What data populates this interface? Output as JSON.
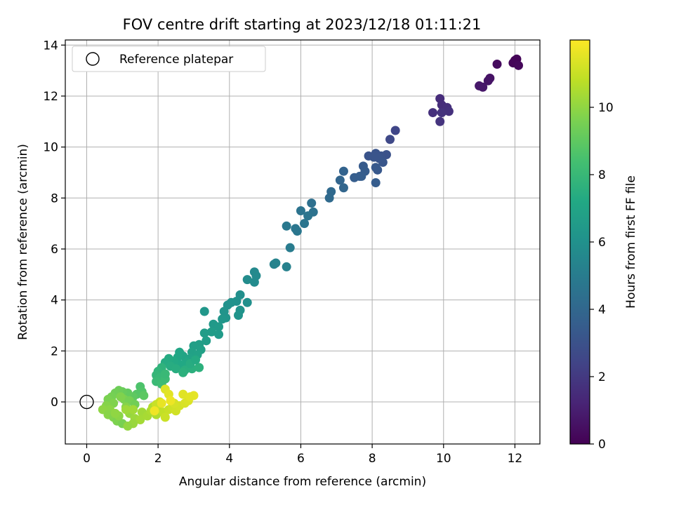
{
  "chart_data": {
    "type": "scatter",
    "title": "FOV centre drift starting at 2023/12/18 01:11:21",
    "xlabel": "Angular distance from reference (arcmin)",
    "ylabel": "Rotation from reference (arcmin)",
    "xlim": [
      -0.6,
      12.7
    ],
    "ylim": [
      -1.65,
      14.2
    ],
    "xticks": [
      0,
      2,
      4,
      6,
      8,
      10,
      12
    ],
    "yticks": [
      0,
      2,
      4,
      6,
      8,
      10,
      12,
      14
    ],
    "grid": true,
    "legend": {
      "position": "top-left",
      "entries": [
        "Reference platepar"
      ]
    },
    "reference_point": {
      "x": 0,
      "y": 0,
      "label": "Reference platepar"
    },
    "colorbar": {
      "label": "Hours from first FF file",
      "range": [
        0,
        12
      ],
      "ticks": [
        0,
        2,
        4,
        6,
        8,
        10
      ],
      "colormap": "viridis"
    },
    "points": [
      {
        "x": 12.0,
        "y": 13.4,
        "t": 0.05
      },
      {
        "x": 12.05,
        "y": 13.45,
        "t": 0.1
      },
      {
        "x": 11.95,
        "y": 13.3,
        "t": 0.15
      },
      {
        "x": 12.1,
        "y": 13.2,
        "t": 0.2
      },
      {
        "x": 11.5,
        "y": 13.25,
        "t": 0.35
      },
      {
        "x": 11.3,
        "y": 12.7,
        "t": 0.6
      },
      {
        "x": 11.25,
        "y": 12.6,
        "t": 0.65
      },
      {
        "x": 11.1,
        "y": 12.35,
        "t": 0.75
      },
      {
        "x": 11.0,
        "y": 12.4,
        "t": 0.8
      },
      {
        "x": 9.9,
        "y": 11.9,
        "t": 1.5
      },
      {
        "x": 9.95,
        "y": 11.65,
        "t": 1.55
      },
      {
        "x": 10.1,
        "y": 11.55,
        "t": 1.6
      },
      {
        "x": 9.7,
        "y": 11.35,
        "t": 1.65
      },
      {
        "x": 10.15,
        "y": 11.4,
        "t": 1.7
      },
      {
        "x": 9.9,
        "y": 11.0,
        "t": 1.8
      },
      {
        "x": 9.95,
        "y": 11.35,
        "t": 1.75
      },
      {
        "x": 8.65,
        "y": 10.65,
        "t": 2.5
      },
      {
        "x": 8.5,
        "y": 10.3,
        "t": 2.6
      },
      {
        "x": 8.4,
        "y": 9.7,
        "t": 3.0
      },
      {
        "x": 8.25,
        "y": 9.65,
        "t": 3.05
      },
      {
        "x": 8.1,
        "y": 9.75,
        "t": 3.1
      },
      {
        "x": 8.2,
        "y": 9.55,
        "t": 3.15
      },
      {
        "x": 8.3,
        "y": 9.4,
        "t": 3.2
      },
      {
        "x": 7.9,
        "y": 9.65,
        "t": 3.1
      },
      {
        "x": 8.05,
        "y": 9.6,
        "t": 3.15
      },
      {
        "x": 8.15,
        "y": 9.1,
        "t": 3.3
      },
      {
        "x": 8.1,
        "y": 9.2,
        "t": 3.35
      },
      {
        "x": 8.1,
        "y": 8.6,
        "t": 3.5
      },
      {
        "x": 7.75,
        "y": 9.25,
        "t": 3.4
      },
      {
        "x": 7.8,
        "y": 9.05,
        "t": 3.45
      },
      {
        "x": 7.65,
        "y": 8.85,
        "t": 3.5
      },
      {
        "x": 7.5,
        "y": 8.8,
        "t": 3.55
      },
      {
        "x": 7.7,
        "y": 8.85,
        "t": 3.55
      },
      {
        "x": 7.2,
        "y": 9.05,
        "t": 3.8
      },
      {
        "x": 7.1,
        "y": 8.7,
        "t": 3.9
      },
      {
        "x": 7.2,
        "y": 8.4,
        "t": 3.95
      },
      {
        "x": 6.85,
        "y": 8.25,
        "t": 4.1
      },
      {
        "x": 6.8,
        "y": 8.0,
        "t": 4.15
      },
      {
        "x": 6.3,
        "y": 7.8,
        "t": 4.4
      },
      {
        "x": 6.35,
        "y": 7.45,
        "t": 4.5
      },
      {
        "x": 6.0,
        "y": 7.5,
        "t": 4.55
      },
      {
        "x": 6.2,
        "y": 7.3,
        "t": 4.6
      },
      {
        "x": 6.1,
        "y": 7.0,
        "t": 4.65
      },
      {
        "x": 5.9,
        "y": 6.7,
        "t": 4.75
      },
      {
        "x": 5.85,
        "y": 6.8,
        "t": 4.7
      },
      {
        "x": 5.6,
        "y": 6.9,
        "t": 4.8
      },
      {
        "x": 5.7,
        "y": 6.05,
        "t": 5.0
      },
      {
        "x": 5.25,
        "y": 5.4,
        "t": 5.3
      },
      {
        "x": 5.3,
        "y": 5.45,
        "t": 5.35
      },
      {
        "x": 5.6,
        "y": 5.3,
        "t": 5.25
      },
      {
        "x": 4.7,
        "y": 5.1,
        "t": 5.6
      },
      {
        "x": 4.75,
        "y": 4.95,
        "t": 5.65
      },
      {
        "x": 4.7,
        "y": 4.7,
        "t": 5.7
      },
      {
        "x": 4.5,
        "y": 4.8,
        "t": 5.75
      },
      {
        "x": 4.3,
        "y": 4.2,
        "t": 5.9
      },
      {
        "x": 4.5,
        "y": 3.9,
        "t": 5.95
      },
      {
        "x": 4.2,
        "y": 3.95,
        "t": 6.0
      },
      {
        "x": 4.05,
        "y": 3.9,
        "t": 6.05
      },
      {
        "x": 3.95,
        "y": 3.8,
        "t": 6.05
      },
      {
        "x": 4.3,
        "y": 3.6,
        "t": 6.1
      },
      {
        "x": 4.25,
        "y": 3.4,
        "t": 6.15
      },
      {
        "x": 3.9,
        "y": 3.3,
        "t": 6.2
      },
      {
        "x": 3.85,
        "y": 3.55,
        "t": 6.15
      },
      {
        "x": 3.8,
        "y": 3.25,
        "t": 6.25
      },
      {
        "x": 3.3,
        "y": 3.55,
        "t": 6.3
      },
      {
        "x": 3.55,
        "y": 3.05,
        "t": 6.4
      },
      {
        "x": 3.7,
        "y": 2.95,
        "t": 6.45
      },
      {
        "x": 3.7,
        "y": 2.65,
        "t": 6.5
      },
      {
        "x": 3.5,
        "y": 2.75,
        "t": 6.55
      },
      {
        "x": 3.3,
        "y": 2.7,
        "t": 6.6
      },
      {
        "x": 3.35,
        "y": 2.4,
        "t": 6.65
      },
      {
        "x": 3.15,
        "y": 2.25,
        "t": 6.7
      },
      {
        "x": 3.0,
        "y": 2.2,
        "t": 6.75
      },
      {
        "x": 3.2,
        "y": 2.05,
        "t": 6.8
      },
      {
        "x": 2.95,
        "y": 1.95,
        "t": 6.85
      },
      {
        "x": 3.1,
        "y": 1.85,
        "t": 6.9
      },
      {
        "x": 2.9,
        "y": 1.7,
        "t": 6.95
      },
      {
        "x": 2.7,
        "y": 1.8,
        "t": 7.0
      },
      {
        "x": 2.6,
        "y": 1.95,
        "t": 7.05
      },
      {
        "x": 2.55,
        "y": 1.75,
        "t": 7.1
      },
      {
        "x": 2.8,
        "y": 1.55,
        "t": 7.15
      },
      {
        "x": 2.65,
        "y": 1.45,
        "t": 7.2
      },
      {
        "x": 2.45,
        "y": 1.6,
        "t": 7.25
      },
      {
        "x": 2.3,
        "y": 1.7,
        "t": 7.3
      },
      {
        "x": 2.2,
        "y": 1.55,
        "t": 7.35
      },
      {
        "x": 2.35,
        "y": 1.4,
        "t": 7.4
      },
      {
        "x": 2.5,
        "y": 1.3,
        "t": 7.45
      },
      {
        "x": 2.75,
        "y": 1.25,
        "t": 7.5
      },
      {
        "x": 2.95,
        "y": 1.3,
        "t": 7.55
      },
      {
        "x": 3.15,
        "y": 1.35,
        "t": 7.6
      },
      {
        "x": 2.7,
        "y": 1.15,
        "t": 7.6
      },
      {
        "x": 2.9,
        "y": 1.5,
        "t": 7.4
      },
      {
        "x": 3.05,
        "y": 1.65,
        "t": 7.3
      },
      {
        "x": 2.1,
        "y": 1.35,
        "t": 7.7
      },
      {
        "x": 2.0,
        "y": 1.2,
        "t": 7.8
      },
      {
        "x": 1.95,
        "y": 1.05,
        "t": 7.9
      },
      {
        "x": 2.05,
        "y": 0.95,
        "t": 8.0
      },
      {
        "x": 1.95,
        "y": 0.8,
        "t": 8.1
      },
      {
        "x": 2.1,
        "y": 0.7,
        "t": 8.2
      },
      {
        "x": 2.2,
        "y": 0.9,
        "t": 8.15
      },
      {
        "x": 2.2,
        "y": 1.1,
        "t": 8.05
      },
      {
        "x": 1.5,
        "y": 0.6,
        "t": 8.6
      },
      {
        "x": 1.55,
        "y": 0.4,
        "t": 8.7
      },
      {
        "x": 1.4,
        "y": 0.3,
        "t": 8.8
      },
      {
        "x": 1.6,
        "y": 0.25,
        "t": 8.9
      },
      {
        "x": 1.3,
        "y": 0.2,
        "t": 9.0
      },
      {
        "x": 1.15,
        "y": 0.35,
        "t": 9.1
      },
      {
        "x": 1.0,
        "y": 0.4,
        "t": 9.2
      },
      {
        "x": 0.9,
        "y": 0.45,
        "t": 9.3
      },
      {
        "x": 0.8,
        "y": 0.35,
        "t": 9.4
      },
      {
        "x": 0.7,
        "y": 0.2,
        "t": 9.5
      },
      {
        "x": 0.6,
        "y": 0.1,
        "t": 9.6
      },
      {
        "x": 0.75,
        "y": -0.05,
        "t": 9.7
      },
      {
        "x": 0.55,
        "y": -0.15,
        "t": 9.8
      },
      {
        "x": 0.65,
        "y": -0.3,
        "t": 9.9
      },
      {
        "x": 0.45,
        "y": -0.3,
        "t": 9.95
      },
      {
        "x": 0.6,
        "y": -0.5,
        "t": 9.85
      },
      {
        "x": 0.75,
        "y": -0.6,
        "t": 9.75
      },
      {
        "x": 0.85,
        "y": -0.75,
        "t": 9.65
      },
      {
        "x": 1.0,
        "y": -0.85,
        "t": 9.55
      },
      {
        "x": 0.9,
        "y": -0.55,
        "t": 9.9
      },
      {
        "x": 1.05,
        "y": 0.1,
        "t": 9.6
      },
      {
        "x": 1.2,
        "y": 0.05,
        "t": 9.5
      },
      {
        "x": 0.95,
        "y": 0.2,
        "t": 9.7
      },
      {
        "x": 1.35,
        "y": -0.1,
        "t": 9.4
      },
      {
        "x": 1.1,
        "y": -0.2,
        "t": 9.8
      },
      {
        "x": 0.8,
        "y": -0.45,
        "t": 10.0
      },
      {
        "x": 1.2,
        "y": -0.45,
        "t": 10.1
      },
      {
        "x": 1.35,
        "y": -0.65,
        "t": 10.2
      },
      {
        "x": 1.55,
        "y": -0.4,
        "t": 10.3
      },
      {
        "x": 1.5,
        "y": -0.7,
        "t": 10.35
      },
      {
        "x": 1.7,
        "y": -0.55,
        "t": 10.4
      },
      {
        "x": 1.8,
        "y": -0.35,
        "t": 10.5
      },
      {
        "x": 1.95,
        "y": -0.5,
        "t": 10.55
      },
      {
        "x": 1.85,
        "y": -0.2,
        "t": 10.6
      },
      {
        "x": 1.3,
        "y": -0.85,
        "t": 10.15
      },
      {
        "x": 1.15,
        "y": -0.95,
        "t": 10.05
      },
      {
        "x": 1.1,
        "y": -0.3,
        "t": 10.25
      },
      {
        "x": 1.3,
        "y": -0.3,
        "t": 10.3
      },
      {
        "x": 2.0,
        "y": -0.25,
        "t": 10.8
      },
      {
        "x": 2.15,
        "y": -0.4,
        "t": 10.9
      },
      {
        "x": 2.3,
        "y": -0.3,
        "t": 11.0
      },
      {
        "x": 2.2,
        "y": -0.6,
        "t": 11.05
      },
      {
        "x": 2.4,
        "y": -0.2,
        "t": 11.1
      },
      {
        "x": 2.5,
        "y": -0.35,
        "t": 11.15
      },
      {
        "x": 2.6,
        "y": -0.15,
        "t": 11.2
      },
      {
        "x": 2.75,
        "y": -0.05,
        "t": 11.3
      },
      {
        "x": 2.85,
        "y": 0.05,
        "t": 11.35
      },
      {
        "x": 2.7,
        "y": 0.3,
        "t": 11.45
      },
      {
        "x": 3.0,
        "y": 0.25,
        "t": 11.55
      },
      {
        "x": 2.9,
        "y": 0.2,
        "t": 11.5
      },
      {
        "x": 2.2,
        "y": 0.5,
        "t": 11.4
      },
      {
        "x": 2.3,
        "y": 0.3,
        "t": 11.5
      },
      {
        "x": 2.05,
        "y": 0.0,
        "t": 11.2
      },
      {
        "x": 1.95,
        "y": -0.1,
        "t": 11.0
      },
      {
        "x": 2.45,
        "y": -0.05,
        "t": 11.25
      },
      {
        "x": 2.1,
        "y": -0.05,
        "t": 11.6
      },
      {
        "x": 2.35,
        "y": 0.05,
        "t": 11.7
      },
      {
        "x": 1.9,
        "y": -0.35,
        "t": 11.75
      }
    ]
  }
}
